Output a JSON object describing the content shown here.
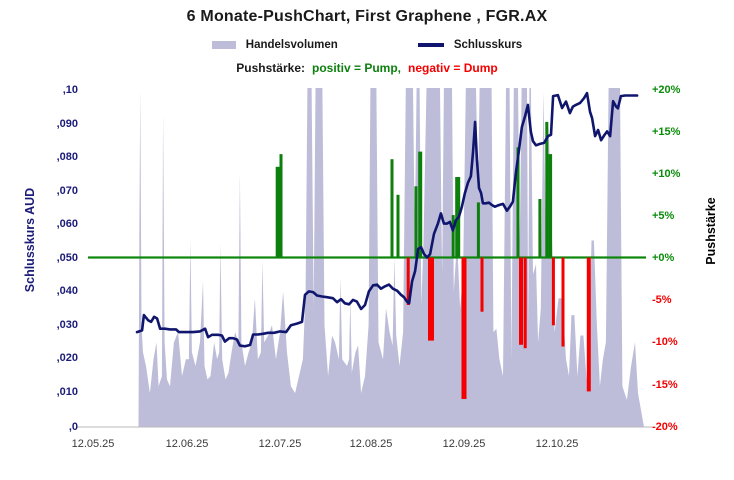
{
  "title": "6 Monate-PushChart,  First Graphene , FGR.AX",
  "legend": {
    "volume_label": "Handelsvolumen",
    "close_label": "Schlusskurs",
    "push_prefix": "Pushstärke:",
    "pump_text": "positiv = Pump,",
    "dump_text": "negativ = Dump"
  },
  "left_axis": {
    "title": "Schlusskurs AUD",
    "ticks": [
      ",10",
      ",090",
      ",080",
      ",070",
      ",060",
      ",050",
      ",040",
      ",030",
      ",020",
      ",010",
      ",0"
    ]
  },
  "right_axis": {
    "title": "Pushstärke",
    "ticks": [
      "+20%",
      "+15%",
      "+10%",
      "+5%",
      "+0%",
      "-5%",
      "-10%",
      "-15%",
      "-20%"
    ]
  },
  "x_axis": {
    "ticks": [
      "12.05.25",
      "12.06.25",
      "12.07.25",
      "12.08.25",
      "12.09.25",
      "12.10.25"
    ]
  },
  "colors": {
    "title_text": "#1a1a1a",
    "volume_fill": "#bdbdd9",
    "close_line": "#10166e",
    "positive": "#0d7f0d",
    "negative": "#f40000",
    "zero_line": "#0a870a",
    "baseline": "#b9b9b9",
    "left_axis_text": "#1b1b78",
    "right_axis_pos": "#0a8c0a",
    "right_axis_neg": "#f40000",
    "x_axis_text": "#3a3a3a"
  },
  "chart_data": {
    "type": "combo",
    "x_unit": "days since 12.05.25",
    "x_ticks": [
      {
        "d": 0,
        "label": "12.05.25"
      },
      {
        "d": 31,
        "label": "12.06.25"
      },
      {
        "d": 62,
        "label": "12.07.25"
      },
      {
        "d": 92,
        "label": "12.08.25"
      },
      {
        "d": 123,
        "label": "12.09.25"
      },
      {
        "d": 154,
        "label": "12.10.25"
      }
    ],
    "price_axis": {
      "label": "Schlusskurs AUD",
      "min": 0,
      "max": 0.1
    },
    "push_axis": {
      "label": "Pushstärke",
      "min": -20,
      "max": 20,
      "zero_label": "+0%"
    },
    "close_line": [
      [
        14,
        0.028
      ],
      [
        15.7,
        0.0285
      ],
      [
        16.3,
        0.033
      ],
      [
        17.7,
        0.0315
      ],
      [
        18.7,
        0.031
      ],
      [
        19.7,
        0.0325
      ],
      [
        20.7,
        0.032
      ],
      [
        21.7,
        0.029
      ],
      [
        23.3,
        0.029
      ],
      [
        25,
        0.0288
      ],
      [
        27,
        0.0288
      ],
      [
        28,
        0.028
      ],
      [
        30.3,
        0.028
      ],
      [
        32.7,
        0.028
      ],
      [
        35,
        0.0282
      ],
      [
        36.7,
        0.029
      ],
      [
        37.7,
        0.0265
      ],
      [
        39,
        0.0272
      ],
      [
        41,
        0.0272
      ],
      [
        42.3,
        0.027
      ],
      [
        43.3,
        0.0252
      ],
      [
        44.7,
        0.0262
      ],
      [
        46,
        0.0262
      ],
      [
        47.3,
        0.0258
      ],
      [
        48.3,
        0.024
      ],
      [
        50,
        0.0238
      ],
      [
        51.7,
        0.0242
      ],
      [
        52.7,
        0.0273
      ],
      [
        54.3,
        0.0273
      ],
      [
        56,
        0.0275
      ],
      [
        57.7,
        0.0278
      ],
      [
        59.7,
        0.0278
      ],
      [
        61.7,
        0.0282
      ],
      [
        63.7,
        0.028
      ],
      [
        65.3,
        0.03
      ],
      [
        67.3,
        0.0305
      ],
      [
        69,
        0.031
      ],
      [
        70,
        0.039
      ],
      [
        71.3,
        0.04
      ],
      [
        72.7,
        0.0398
      ],
      [
        74,
        0.0388
      ],
      [
        75.7,
        0.0385
      ],
      [
        77.3,
        0.0383
      ],
      [
        79.3,
        0.038
      ],
      [
        80.7,
        0.0368
      ],
      [
        82,
        0.0377
      ],
      [
        83.3,
        0.0365
      ],
      [
        84.7,
        0.0362
      ],
      [
        86,
        0.0375
      ],
      [
        87.3,
        0.037
      ],
      [
        88.7,
        0.0348
      ],
      [
        90,
        0.036
      ],
      [
        91.3,
        0.04
      ],
      [
        92.7,
        0.0418
      ],
      [
        94,
        0.042
      ],
      [
        95.3,
        0.0408
      ],
      [
        96.7,
        0.0415
      ],
      [
        98,
        0.042
      ],
      [
        99.3,
        0.0408
      ],
      [
        100.7,
        0.0402
      ],
      [
        102,
        0.039
      ],
      [
        103,
        0.0383
      ],
      [
        104,
        0.037
      ],
      [
        104.7,
        0.0365
      ],
      [
        105.7,
        0.043
      ],
      [
        106.7,
        0.046
      ],
      [
        107.7,
        0.0525
      ],
      [
        108.7,
        0.053
      ],
      [
        109.7,
        0.051
      ],
      [
        110.7,
        0.05
      ],
      [
        111.7,
        0.051
      ],
      [
        113,
        0.057
      ],
      [
        114.3,
        0.06
      ],
      [
        115.3,
        0.063
      ],
      [
        116.3,
        0.06
      ],
      [
        117.3,
        0.06
      ],
      [
        118.3,
        0.0605
      ],
      [
        119.3,
        0.058
      ],
      [
        120.3,
        0.061
      ],
      [
        121.3,
        0.062
      ],
      [
        122.3,
        0.065
      ],
      [
        123.3,
        0.069
      ],
      [
        124.3,
        0.072
      ],
      [
        125.3,
        0.074
      ],
      [
        126,
        0.081
      ],
      [
        126.7,
        0.09
      ],
      [
        127.3,
        0.079
      ],
      [
        128,
        0.0705
      ],
      [
        128.7,
        0.069
      ],
      [
        129.3,
        0.066
      ],
      [
        130.3,
        0.066
      ],
      [
        131.3,
        0.0662
      ],
      [
        132.3,
        0.0655
      ],
      [
        133.3,
        0.065
      ],
      [
        134.7,
        0.0655
      ],
      [
        136,
        0.0658
      ],
      [
        137.3,
        0.0638
      ],
      [
        138.3,
        0.065
      ],
      [
        139.3,
        0.0665
      ],
      [
        140.3,
        0.075
      ],
      [
        141.3,
        0.0815
      ],
      [
        142.3,
        0.0885
      ],
      [
        143.3,
        0.0915
      ],
      [
        144.3,
        0.095
      ],
      [
        145.3,
        0.087
      ],
      [
        146,
        0.0843
      ],
      [
        147,
        0.0831
      ],
      [
        148.3,
        0.0835
      ],
      [
        149.7,
        0.0838
      ],
      [
        151,
        0.0858
      ],
      [
        152,
        0.0862
      ],
      [
        152.7,
        0.0976
      ],
      [
        153.7,
        0.0978
      ],
      [
        154.3,
        0.0979
      ],
      [
        155.7,
        0.0941
      ],
      [
        157,
        0.096
      ],
      [
        158.3,
        0.0926
      ],
      [
        159.3,
        0.0945
      ],
      [
        160.3,
        0.095
      ],
      [
        161.7,
        0.0956
      ],
      [
        163,
        0.097
      ],
      [
        164,
        0.0985
      ],
      [
        165,
        0.093
      ],
      [
        165.7,
        0.0911
      ],
      [
        166.7,
        0.0858
      ],
      [
        167.7,
        0.0876
      ],
      [
        168.7,
        0.0846
      ],
      [
        169.7,
        0.086
      ],
      [
        170.7,
        0.0872
      ],
      [
        171.7,
        0.0858
      ],
      [
        172.7,
        0.0961
      ],
      [
        173.7,
        0.0945
      ],
      [
        174.3,
        0.094
      ],
      [
        175.3,
        0.0976
      ],
      [
        176.7,
        0.0978
      ],
      [
        178.3,
        0.0978
      ],
      [
        180.7,
        0.0978
      ]
    ],
    "volume_area": [
      [
        14.5,
        0
      ],
      [
        14.8,
        60
      ],
      [
        15.1,
        100
      ],
      [
        15.5,
        30
      ],
      [
        16,
        22
      ],
      [
        17,
        18
      ],
      [
        18.3,
        10
      ],
      [
        19.5,
        20
      ],
      [
        20.5,
        25
      ],
      [
        21.2,
        12
      ],
      [
        22.3,
        15
      ],
      [
        22.7,
        93
      ],
      [
        23.2,
        25
      ],
      [
        24,
        14
      ],
      [
        25,
        12
      ],
      [
        26.3,
        25
      ],
      [
        27.7,
        28
      ],
      [
        29,
        15
      ],
      [
        30.3,
        20
      ],
      [
        31.3,
        20
      ],
      [
        31.8,
        55
      ],
      [
        32.3,
        22
      ],
      [
        33.5,
        18
      ],
      [
        35,
        25
      ],
      [
        36,
        43
      ],
      [
        36.5,
        18
      ],
      [
        37.5,
        14
      ],
      [
        38.5,
        15
      ],
      [
        39.7,
        25
      ],
      [
        40.7,
        20
      ],
      [
        41.4,
        22
      ],
      [
        41.8,
        54
      ],
      [
        42.4,
        20
      ],
      [
        43.5,
        14
      ],
      [
        44.5,
        16
      ],
      [
        45.5,
        22
      ],
      [
        46.7,
        28
      ],
      [
        47.8,
        25
      ],
      [
        48.3,
        75
      ],
      [
        48.8,
        25
      ],
      [
        50,
        18
      ],
      [
        51.2,
        22
      ],
      [
        52.3,
        25
      ],
      [
        53.3,
        38
      ],
      [
        54.3,
        20
      ],
      [
        55.3,
        22
      ],
      [
        55.8,
        49
      ],
      [
        56.4,
        25
      ],
      [
        57.7,
        27
      ],
      [
        59,
        30
      ],
      [
        60.3,
        20
      ],
      [
        61.7,
        28
      ],
      [
        62.7,
        40
      ],
      [
        64,
        22
      ],
      [
        65.3,
        12
      ],
      [
        66.7,
        10
      ],
      [
        68,
        15
      ],
      [
        69.3,
        20
      ],
      [
        70.2,
        40
      ],
      [
        70.8,
        100
      ],
      [
        72.2,
        100
      ],
      [
        72.9,
        35
      ],
      [
        73.5,
        100
      ],
      [
        75.8,
        100
      ],
      [
        76.5,
        30
      ],
      [
        77.7,
        15
      ],
      [
        79,
        27
      ],
      [
        80,
        25
      ],
      [
        81.3,
        20
      ],
      [
        81.8,
        44
      ],
      [
        82.4,
        20
      ],
      [
        84,
        18
      ],
      [
        84.7,
        20
      ],
      [
        85.1,
        38
      ],
      [
        85.6,
        16
      ],
      [
        86.8,
        22
      ],
      [
        87.7,
        24
      ],
      [
        88.7,
        10
      ],
      [
        90,
        15
      ],
      [
        91.2,
        30
      ],
      [
        91.8,
        100
      ],
      [
        93.8,
        100
      ],
      [
        94.5,
        25
      ],
      [
        96,
        20
      ],
      [
        97,
        35
      ],
      [
        98.2,
        28
      ],
      [
        99.2,
        24
      ],
      [
        99.8,
        50
      ],
      [
        100.4,
        27
      ],
      [
        101.5,
        18
      ],
      [
        102.7,
        28
      ],
      [
        103.6,
        100
      ],
      [
        106,
        100
      ],
      [
        106.6,
        55
      ],
      [
        107.2,
        100
      ],
      [
        108.2,
        100
      ],
      [
        108.8,
        36
      ],
      [
        109.5,
        55
      ],
      [
        110.5,
        100
      ],
      [
        115,
        100
      ],
      [
        115.7,
        45
      ],
      [
        116.3,
        100
      ],
      [
        119,
        100
      ],
      [
        119.6,
        40
      ],
      [
        120.7,
        55
      ],
      [
        121.7,
        35
      ],
      [
        122.7,
        45
      ],
      [
        123.6,
        100
      ],
      [
        127,
        100
      ],
      [
        127.7,
        70
      ],
      [
        128.2,
        100
      ],
      [
        132.2,
        100
      ],
      [
        132.8,
        28
      ],
      [
        133.8,
        29
      ],
      [
        134.8,
        20
      ],
      [
        136,
        15
      ],
      [
        137,
        100
      ],
      [
        138.2,
        100
      ],
      [
        138.8,
        20
      ],
      [
        139.6,
        100
      ],
      [
        141,
        100
      ],
      [
        141.6,
        55
      ],
      [
        142.2,
        100
      ],
      [
        144,
        100
      ],
      [
        144.4,
        30
      ],
      [
        144.8,
        100
      ],
      [
        145.3,
        100
      ],
      [
        146,
        45
      ],
      [
        147,
        48
      ],
      [
        147.7,
        25
      ],
      [
        148.6,
        35
      ],
      [
        149.5,
        99
      ],
      [
        150.2,
        60
      ],
      [
        151.2,
        89
      ],
      [
        152.2,
        60
      ],
      [
        153.2,
        28
      ],
      [
        154.5,
        38
      ],
      [
        155.8,
        38
      ],
      [
        157,
        20
      ],
      [
        158,
        15
      ],
      [
        158.8,
        33
      ],
      [
        159.8,
        33
      ],
      [
        160.8,
        15
      ],
      [
        161.8,
        27
      ],
      [
        162.8,
        27
      ],
      [
        163.8,
        15
      ],
      [
        164.5,
        12
      ],
      [
        165.5,
        55
      ],
      [
        166.3,
        55
      ],
      [
        167.3,
        30
      ],
      [
        168.3,
        12
      ],
      [
        169.3,
        20
      ],
      [
        170.3,
        25
      ],
      [
        171.2,
        100
      ],
      [
        175,
        100
      ],
      [
        175.8,
        12
      ],
      [
        177.3,
        8
      ],
      [
        178.7,
        18
      ],
      [
        180,
        25
      ],
      [
        181,
        10
      ],
      [
        182,
        5
      ],
      [
        183,
        0
      ]
    ],
    "push_bars": [
      [
        60.9,
        10.7,
        4
      ],
      [
        62,
        12.2,
        3
      ],
      [
        99,
        11.6,
        3
      ],
      [
        101,
        7.4,
        3
      ],
      [
        107,
        8.4,
        3
      ],
      [
        108.4,
        12.5,
        4
      ],
      [
        119.4,
        5,
        3
      ],
      [
        120.9,
        9.5,
        5
      ],
      [
        127.8,
        6.5,
        3
      ],
      [
        141,
        13,
        3
      ],
      [
        148.3,
        6.9,
        3
      ],
      [
        150.6,
        16,
        3
      ],
      [
        151.7,
        12.2,
        4
      ],
      [
        104.4,
        -5.6,
        3
      ],
      [
        112,
        -9.8,
        6
      ],
      [
        123,
        -16.7,
        5
      ],
      [
        129,
        -6.4,
        3
      ],
      [
        142,
        -10.3,
        4
      ],
      [
        143.4,
        -10.7,
        3
      ],
      [
        152.8,
        -8,
        3
      ],
      [
        156,
        -10.5,
        3
      ],
      [
        164.6,
        -15.8,
        4
      ]
    ]
  }
}
